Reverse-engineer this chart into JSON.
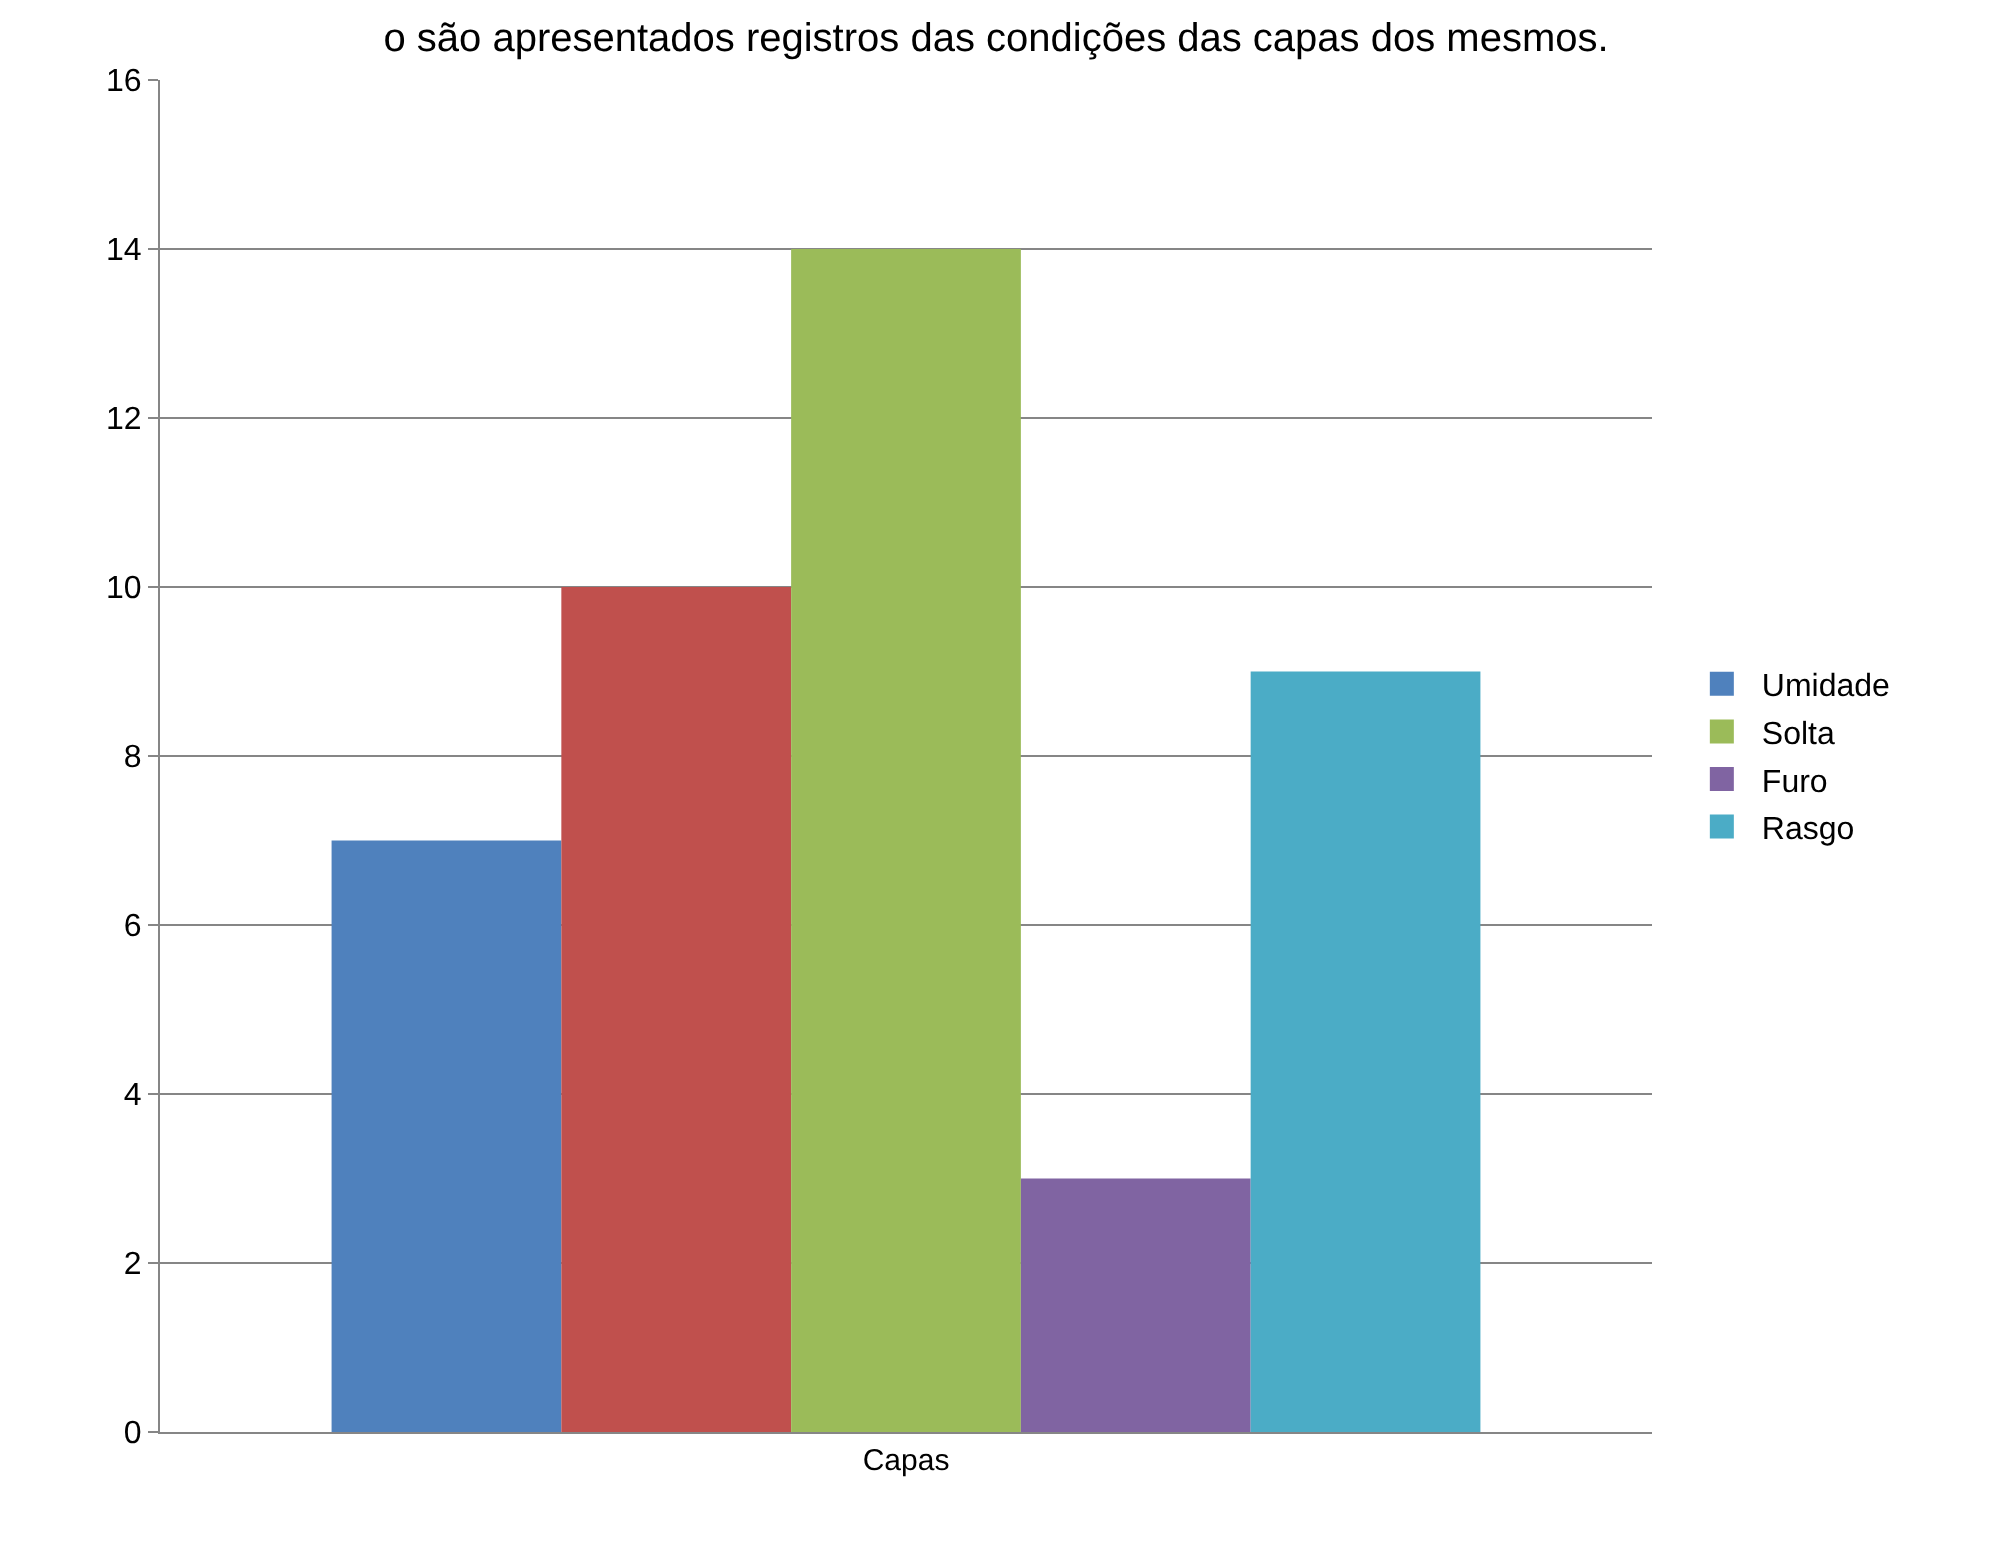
{
  "chart_data": {
    "type": "bar",
    "title": "o são apresentados registros das condições das capas dos mesmos.",
    "categories": [
      "Capas"
    ],
    "series": [
      {
        "name": "Umidade",
        "color": "#4f81bd",
        "values": [
          7
        ]
      },
      {
        "color": "#c0504d",
        "values": [
          10
        ]
      },
      {
        "name": "Solta",
        "color": "#9bbb59",
        "values": [
          14
        ]
      },
      {
        "name": "Furo",
        "color": "#8064a2",
        "values": [
          3
        ]
      },
      {
        "name": "Rasgo",
        "color": "#4bacc6",
        "values": [
          9
        ]
      }
    ],
    "ylim": [
      0,
      16
    ],
    "yticks": [
      0,
      2,
      4,
      6,
      8,
      10,
      12,
      14,
      16
    ],
    "grid": "y",
    "legend": "right"
  }
}
